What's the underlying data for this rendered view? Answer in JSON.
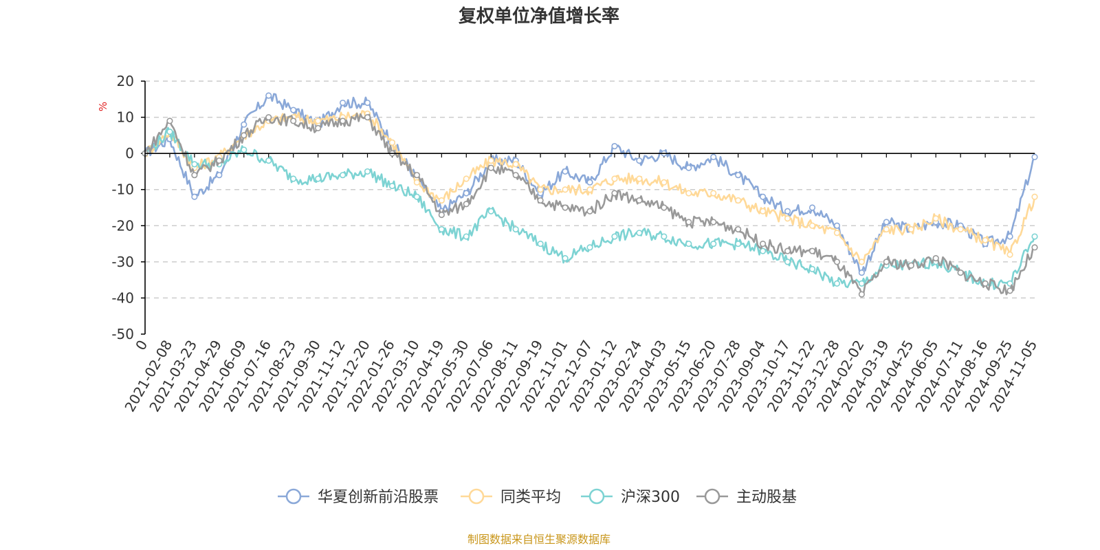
{
  "chart_data": {
    "type": "line",
    "title": "复权单位净值增长率",
    "ylabel": "%",
    "ylim": [
      -50,
      20
    ],
    "yticks": [
      20,
      10,
      0,
      -10,
      -20,
      -30,
      -40,
      -50
    ],
    "categories": [
      "0",
      "2021-02-08",
      "2021-03-23",
      "2021-04-29",
      "2021-06-09",
      "2021-07-16",
      "2021-08-23",
      "2021-09-30",
      "2021-11-12",
      "2021-12-20",
      "2022-01-26",
      "2022-03-10",
      "2022-04-19",
      "2022-05-30",
      "2022-07-06",
      "2022-08-11",
      "2022-09-19",
      "2022-11-01",
      "2022-12-07",
      "2023-01-12",
      "2023-02-24",
      "2023-04-03",
      "2023-05-15",
      "2023-06-20",
      "2023-07-28",
      "2023-09-04",
      "2023-10-17",
      "2023-11-22",
      "2023-12-28",
      "2024-02-02",
      "2024-03-19",
      "2024-04-25",
      "2024-06-05",
      "2024-07-11",
      "2024-08-16",
      "2024-09-25",
      "2024-11-05"
    ],
    "series": [
      {
        "name": "华夏创新前沿股票",
        "color": "#8aa8d8",
        "values": [
          0,
          4,
          -12,
          -6,
          8,
          16,
          12,
          8,
          14,
          14,
          3,
          -7,
          -16,
          -11,
          -2,
          -2,
          -11,
          -5,
          -8,
          2,
          -2,
          0,
          -4,
          -1,
          -6,
          -12,
          -16,
          -15,
          -20,
          -33,
          -19,
          -21,
          -19,
          -20,
          -25,
          -23,
          -1
        ]
      },
      {
        "name": "同类平均",
        "color": "#ffd998",
        "values": [
          0,
          6,
          -4,
          -1,
          5,
          9,
          10,
          9,
          10,
          11,
          3,
          -8,
          -13,
          -7,
          -2,
          -3,
          -10,
          -10,
          -10,
          -7,
          -7,
          -8,
          -11,
          -11,
          -13,
          -16,
          -18,
          -20,
          -22,
          -30,
          -21,
          -21,
          -18,
          -21,
          -24,
          -28,
          -12
        ]
      },
      {
        "name": "沪深300",
        "color": "#7dd3d3",
        "values": [
          0,
          6,
          -3,
          -3,
          1,
          -2,
          -7,
          -7,
          -6,
          -5,
          -9,
          -12,
          -21,
          -23,
          -16,
          -21,
          -25,
          -29,
          -26,
          -23,
          -22,
          -23,
          -25,
          -25,
          -25,
          -27,
          -30,
          -32,
          -36,
          -36,
          -31,
          -31,
          -30,
          -33,
          -36,
          -36,
          -23
        ]
      },
      {
        "name": "主动股基",
        "color": "#999999",
        "values": [
          0,
          9,
          -6,
          -2,
          5,
          10,
          9,
          7,
          9,
          10,
          0,
          -6,
          -17,
          -14,
          -4,
          -6,
          -13,
          -15,
          -16,
          -11,
          -13,
          -15,
          -19,
          -19,
          -21,
          -25,
          -27,
          -27,
          -30,
          -39,
          -30,
          -31,
          -29,
          -33,
          -36,
          -38,
          -26
        ]
      }
    ]
  },
  "legend": [
    "华夏创新前沿股票",
    "同类平均",
    "沪深300",
    "主动股基"
  ],
  "source": "制图数据来自恒生聚源数据库",
  "colors": {
    "source_text": "#c9961a",
    "grid": "#cccccc",
    "axis": "#000000"
  }
}
